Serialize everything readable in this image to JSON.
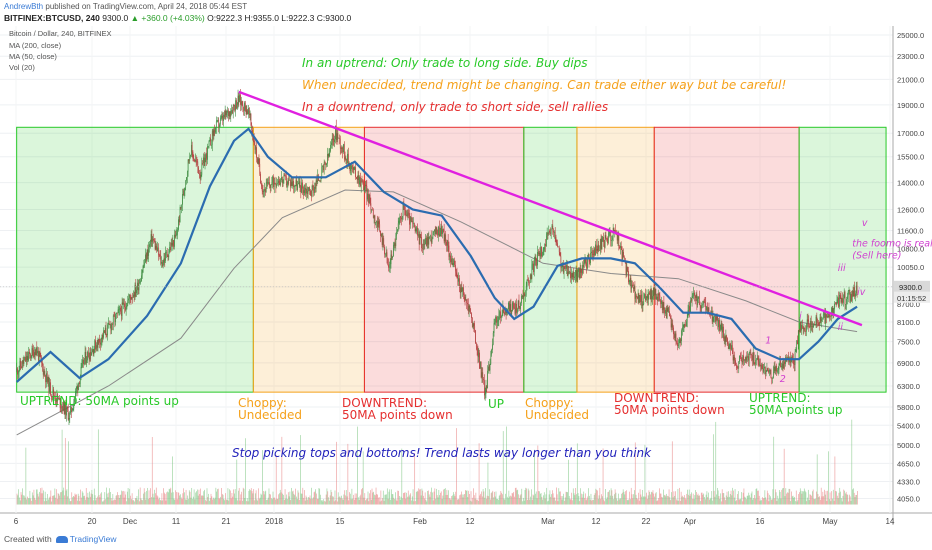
{
  "header": {
    "author": "AndrewBth",
    "publish_text": "published on TradingView.com, April 24, 2018 05:44 EST",
    "symbol": "BITFINEX:BTCUSD, 240",
    "last": "9300.0",
    "change": "▲ +360.0 (+4.03%)",
    "ohlc": "O:9222.3  H:9355.0  L:9222.3  C:9300.0"
  },
  "legend": {
    "title": "Bitcoin / Dollar, 240, BITFINEX",
    "ma200": "MA (200, close)",
    "ma50": "MA (50, close)",
    "vol": "Vol (20)"
  },
  "footer": {
    "created_with": "Created with",
    "brand": "TradingView"
  },
  "price_tags": {
    "last": "9300.0",
    "countdown": "01:15:52"
  },
  "chart_data": {
    "type": "candlestick",
    "title": "Bitcoin / Dollar, 240, BITFINEX",
    "y_axis": {
      "scale": "log",
      "ticks": [
        4050,
        4330,
        4650,
        5000,
        5400,
        5800,
        6300,
        6900,
        7500,
        8100,
        8700,
        9300,
        10050,
        10800,
        11600,
        12600,
        14000,
        15500,
        17000,
        19000,
        21000,
        23000,
        25000
      ]
    },
    "x_axis": {
      "tick_labels": [
        "6",
        "20",
        "Dec",
        "11",
        "21",
        "2018",
        "15",
        "Feb",
        "12",
        "Mar",
        "12",
        "22",
        "Apr",
        "16",
        "May",
        "14"
      ]
    },
    "price_path": [
      {
        "date": "2017-11-01",
        "price": 6700
      },
      {
        "date": "2017-11-05",
        "price": 7300
      },
      {
        "date": "2017-11-08",
        "price": 6200
      },
      {
        "date": "2017-11-10",
        "price": 5900
      },
      {
        "date": "2017-11-12",
        "price": 5600
      },
      {
        "date": "2017-11-15",
        "price": 7000
      },
      {
        "date": "2017-11-20",
        "price": 7900
      },
      {
        "date": "2017-11-26",
        "price": 9300
      },
      {
        "date": "2017-11-29",
        "price": 11300
      },
      {
        "date": "2017-12-01",
        "price": 10200
      },
      {
        "date": "2017-12-04",
        "price": 11300
      },
      {
        "date": "2017-12-07",
        "price": 16000
      },
      {
        "date": "2017-12-09",
        "price": 14500
      },
      {
        "date": "2017-12-12",
        "price": 17300
      },
      {
        "date": "2017-12-15",
        "price": 18500
      },
      {
        "date": "2017-12-17",
        "price": 19400
      },
      {
        "date": "2017-12-19",
        "price": 18500
      },
      {
        "date": "2017-12-22",
        "price": 13600
      },
      {
        "date": "2017-12-25",
        "price": 14200
      },
      {
        "date": "2017-12-28",
        "price": 14000
      },
      {
        "date": "2018-01-01",
        "price": 13500
      },
      {
        "date": "2018-01-04",
        "price": 15000
      },
      {
        "date": "2018-01-06",
        "price": 17100
      },
      {
        "date": "2018-01-09",
        "price": 15000
      },
      {
        "date": "2018-01-12",
        "price": 13800
      },
      {
        "date": "2018-01-16",
        "price": 11000
      },
      {
        "date": "2018-01-17",
        "price": 10000
      },
      {
        "date": "2018-01-20",
        "price": 12700
      },
      {
        "date": "2018-01-24",
        "price": 11000
      },
      {
        "date": "2018-01-28",
        "price": 11700
      },
      {
        "date": "2018-02-01",
        "price": 9200
      },
      {
        "date": "2018-02-03",
        "price": 8400
      },
      {
        "date": "2018-02-06",
        "price": 6100
      },
      {
        "date": "2018-02-08",
        "price": 8100
      },
      {
        "date": "2018-02-10",
        "price": 8500
      },
      {
        "date": "2018-02-13",
        "price": 8600
      },
      {
        "date": "2018-02-16",
        "price": 10100
      },
      {
        "date": "2018-02-20",
        "price": 11700
      },
      {
        "date": "2018-02-22",
        "price": 10000
      },
      {
        "date": "2018-02-25",
        "price": 9700
      },
      {
        "date": "2018-03-01",
        "price": 10800
      },
      {
        "date": "2018-03-05",
        "price": 11600
      },
      {
        "date": "2018-03-08",
        "price": 9400
      },
      {
        "date": "2018-03-10",
        "price": 8800
      },
      {
        "date": "2018-03-13",
        "price": 9100
      },
      {
        "date": "2018-03-16",
        "price": 8300
      },
      {
        "date": "2018-03-18",
        "price": 7400
      },
      {
        "date": "2018-03-21",
        "price": 8900
      },
      {
        "date": "2018-03-24",
        "price": 8500
      },
      {
        "date": "2018-03-27",
        "price": 7900
      },
      {
        "date": "2018-03-30",
        "price": 6900
      },
      {
        "date": "2018-04-02",
        "price": 7100
      },
      {
        "date": "2018-04-06",
        "price": 6600
      },
      {
        "date": "2018-04-09",
        "price": 6900
      },
      {
        "date": "2018-04-11",
        "price": 7000
      },
      {
        "date": "2018-04-12",
        "price": 7900
      },
      {
        "date": "2018-04-15",
        "price": 8100
      },
      {
        "date": "2018-04-18",
        "price": 8200
      },
      {
        "date": "2018-04-20",
        "price": 8800
      },
      {
        "date": "2018-04-23",
        "price": 9000
      },
      {
        "date": "2018-04-24",
        "price": 9300
      }
    ],
    "ma50_path": [
      {
        "date": "2017-11-01",
        "price": 6400
      },
      {
        "date": "2017-11-08",
        "price": 7200
      },
      {
        "date": "2017-11-14",
        "price": 6500
      },
      {
        "date": "2017-11-20",
        "price": 7000
      },
      {
        "date": "2017-11-28",
        "price": 8300
      },
      {
        "date": "2017-12-05",
        "price": 10200
      },
      {
        "date": "2017-12-11",
        "price": 13800
      },
      {
        "date": "2017-12-16",
        "price": 16500
      },
      {
        "date": "2017-12-19",
        "price": 17300
      },
      {
        "date": "2017-12-23",
        "price": 15500
      },
      {
        "date": "2017-12-28",
        "price": 14300
      },
      {
        "date": "2018-01-04",
        "price": 14300
      },
      {
        "date": "2018-01-10",
        "price": 15200
      },
      {
        "date": "2018-01-16",
        "price": 13500
      },
      {
        "date": "2018-01-22",
        "price": 12600
      },
      {
        "date": "2018-01-28",
        "price": 12300
      },
      {
        "date": "2018-02-03",
        "price": 10500
      },
      {
        "date": "2018-02-08",
        "price": 8900
      },
      {
        "date": "2018-02-12",
        "price": 8200
      },
      {
        "date": "2018-02-16",
        "price": 8600
      },
      {
        "date": "2018-02-21",
        "price": 10100
      },
      {
        "date": "2018-02-26",
        "price": 10400
      },
      {
        "date": "2018-03-04",
        "price": 10400
      },
      {
        "date": "2018-03-09",
        "price": 10200
      },
      {
        "date": "2018-03-14",
        "price": 9300
      },
      {
        "date": "2018-03-19",
        "price": 8400
      },
      {
        "date": "2018-03-24",
        "price": 8400
      },
      {
        "date": "2018-03-29",
        "price": 8200
      },
      {
        "date": "2018-04-03",
        "price": 7300
      },
      {
        "date": "2018-04-08",
        "price": 7000
      },
      {
        "date": "2018-04-12",
        "price": 7000
      },
      {
        "date": "2018-04-16",
        "price": 7500
      },
      {
        "date": "2018-04-20",
        "price": 8200
      },
      {
        "date": "2018-04-24",
        "price": 8600
      }
    ],
    "ma200_path": [
      {
        "date": "2017-11-01",
        "price": 5200
      },
      {
        "date": "2017-11-20",
        "price": 6300
      },
      {
        "date": "2017-12-05",
        "price": 7600
      },
      {
        "date": "2017-12-16",
        "price": 10000
      },
      {
        "date": "2017-12-26",
        "price": 12200
      },
      {
        "date": "2018-01-08",
        "price": 13600
      },
      {
        "date": "2018-01-18",
        "price": 13500
      },
      {
        "date": "2018-02-01",
        "price": 12000
      },
      {
        "date": "2018-02-18",
        "price": 10200
      },
      {
        "date": "2018-03-04",
        "price": 9800
      },
      {
        "date": "2018-03-18",
        "price": 9600
      },
      {
        "date": "2018-04-01",
        "price": 8800
      },
      {
        "date": "2018-04-12",
        "price": 8100
      },
      {
        "date": "2018-04-24",
        "price": 7800
      }
    ],
    "trendline": [
      {
        "date": "2017-12-17",
        "price": 20000
      },
      {
        "date": "2018-04-25",
        "price": 8000
      }
    ],
    "zones": [
      {
        "label": "UPTREND: 50MA points up",
        "kind": "uptrend",
        "color": "#29c929",
        "start": "2017-11-01",
        "end": "2017-12-20",
        "top": 17400,
        "bottom": 6150
      },
      {
        "label": "Choppy: Undecided",
        "kind": "choppy",
        "color": "#f5a11a",
        "start": "2017-12-20",
        "end": "2018-01-12",
        "top": 17400,
        "bottom": 6150
      },
      {
        "label": "DOWNTREND: 50MA points down",
        "kind": "downtrend",
        "color": "#e52f2f",
        "start": "2018-01-12",
        "end": "2018-02-14",
        "top": 17400,
        "bottom": 6150
      },
      {
        "label": "UP",
        "kind": "uptrend",
        "color": "#29c929",
        "start": "2018-02-14",
        "end": "2018-02-25",
        "top": 17400,
        "bottom": 6150
      },
      {
        "label": "Choppy: Undecided",
        "kind": "choppy",
        "color": "#f5a11a",
        "start": "2018-02-25",
        "end": "2018-03-13",
        "top": 17400,
        "bottom": 6150
      },
      {
        "label": "DOWNTREND: 50MA points down",
        "kind": "downtrend",
        "color": "#e52f2f",
        "start": "2018-03-13",
        "end": "2018-04-12",
        "top": 17400,
        "bottom": 6150
      },
      {
        "label": "UPTREND: 50MA points up",
        "kind": "uptrend",
        "color": "#29c929",
        "start": "2018-04-12",
        "end": "2018-04-30",
        "top": 17400,
        "bottom": 6150
      }
    ],
    "zone_labels": [
      {
        "lines": [
          "UPTREND: 50MA points up"
        ],
        "color": "#29c929"
      },
      {
        "lines": [
          "Choppy:",
          "Undecided"
        ],
        "color": "#f5a11a"
      },
      {
        "lines": [
          "DOWNTREND:",
          "50MA points down"
        ],
        "color": "#e52f2f"
      },
      {
        "lines": [
          "UP"
        ],
        "color": "#29c929"
      },
      {
        "lines": [
          "Choppy:",
          "Undecided"
        ],
        "color": "#f5a11a"
      },
      {
        "lines": [
          "DOWNTREND:",
          "50MA points down"
        ],
        "color": "#e52f2f"
      },
      {
        "lines": [
          "UPTREND:",
          "50MA points up"
        ],
        "color": "#29c929"
      }
    ],
    "annotations": [
      {
        "text": "In an uptrend: Only trade to long side. Buy dips",
        "color": "#29c929"
      },
      {
        "text": "When undecided, trend might be changing. Can trade either way but be careful!",
        "color": "#f5a11a"
      },
      {
        "text": "In a downtrend, only trade to short side, sell rallies",
        "color": "#e52f2f"
      },
      {
        "text": "Stop picking tops and bottoms! Trend lasts way longer than you think",
        "color": "#2222bb"
      }
    ],
    "wave_labels": [
      {
        "text": "v",
        "date": "2018-04-25",
        "price": 11800
      },
      {
        "text": "the foomo is real!",
        "date": "2018-04-23",
        "price": 10900
      },
      {
        "text": "(Sell here)",
        "date": "2018-04-23",
        "price": 10400
      },
      {
        "text": "iii",
        "date": "2018-04-20",
        "price": 9900
      },
      {
        "text": "iv",
        "date": "2018-04-24",
        "price": 9000
      },
      {
        "text": "ii",
        "date": "2018-04-20",
        "price": 7850
      },
      {
        "text": "i",
        "date": "2018-04-12",
        "price": 8200
      },
      {
        "text": "1",
        "date": "2018-04-05",
        "price": 7450
      },
      {
        "text": "2",
        "date": "2018-04-08",
        "price": 6400
      }
    ],
    "volume_baseline": 4050
  }
}
